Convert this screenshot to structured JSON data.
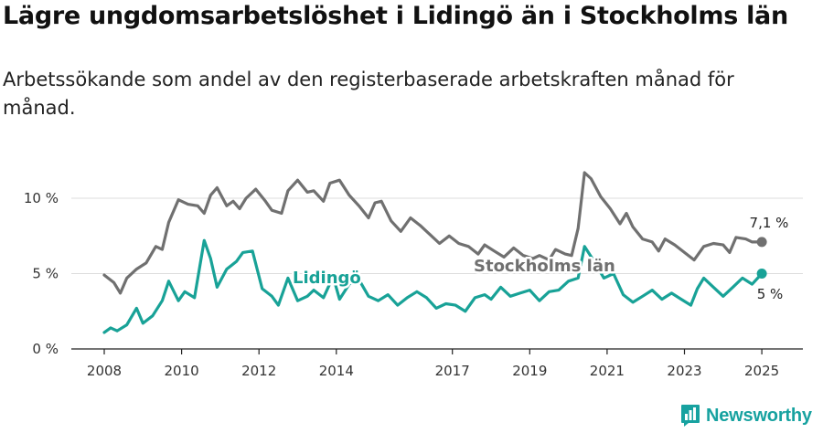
{
  "header": {
    "title": "Lägre ungdomsarbetslöshet i Lidingö än i Stockholms län",
    "subtitle": "Arbetssökande som andel av den registerbaserade arbetskraften månad för månad."
  },
  "brand": {
    "name": "Newsworthy",
    "icon": "bar-chart-logo-icon",
    "color": "#17a2a0"
  },
  "chart_data": {
    "type": "line",
    "title": "Lägre ungdomsarbetslöshet i Lidingö än i Stockholms län",
    "subtitle": "Arbetssökande som andel av den registerbaserade arbetskraften månad för månad.",
    "x_ticks": [
      "2008",
      "2010",
      "2012",
      "2014",
      "2017",
      "2019",
      "2021",
      "2023",
      "2025"
    ],
    "y_ticks": [
      "0 %",
      "5 %",
      "10 %"
    ],
    "ylim": [
      0,
      12
    ],
    "grid": true,
    "series": [
      {
        "name": "Stockholms län",
        "color": "#707070",
        "end_label": "7,1 %",
        "points": [
          [
            "2008-01",
            4.9
          ],
          [
            "2008-04",
            4.4
          ],
          [
            "2008-06",
            3.7
          ],
          [
            "2008-08",
            4.7
          ],
          [
            "2008-11",
            5.3
          ],
          [
            "2009-02",
            5.7
          ],
          [
            "2009-05",
            6.8
          ],
          [
            "2009-07",
            6.6
          ],
          [
            "2009-09",
            8.4
          ],
          [
            "2009-12",
            9.9
          ],
          [
            "2010-03",
            9.6
          ],
          [
            "2010-06",
            9.5
          ],
          [
            "2010-08",
            9.0
          ],
          [
            "2010-10",
            10.2
          ],
          [
            "2010-12",
            10.7
          ],
          [
            "2011-03",
            9.5
          ],
          [
            "2011-05",
            9.8
          ],
          [
            "2011-07",
            9.3
          ],
          [
            "2011-09",
            10.0
          ],
          [
            "2011-12",
            10.6
          ],
          [
            "2012-03",
            9.8
          ],
          [
            "2012-05",
            9.2
          ],
          [
            "2012-08",
            9.0
          ],
          [
            "2012-10",
            10.5
          ],
          [
            "2013-01",
            11.2
          ],
          [
            "2013-04",
            10.4
          ],
          [
            "2013-06",
            10.5
          ],
          [
            "2013-09",
            9.8
          ],
          [
            "2013-11",
            11.0
          ],
          [
            "2014-02",
            11.2
          ],
          [
            "2014-05",
            10.2
          ],
          [
            "2014-08",
            9.5
          ],
          [
            "2014-11",
            8.7
          ],
          [
            "2015-01",
            9.7
          ],
          [
            "2015-03",
            9.8
          ],
          [
            "2015-06",
            8.5
          ],
          [
            "2015-09",
            7.8
          ],
          [
            "2015-12",
            8.7
          ],
          [
            "2016-03",
            8.2
          ],
          [
            "2016-06",
            7.6
          ],
          [
            "2016-09",
            7.0
          ],
          [
            "2016-12",
            7.5
          ],
          [
            "2017-03",
            7.0
          ],
          [
            "2017-06",
            6.8
          ],
          [
            "2017-09",
            6.3
          ],
          [
            "2017-11",
            6.9
          ],
          [
            "2018-02",
            6.5
          ],
          [
            "2018-05",
            6.1
          ],
          [
            "2018-08",
            6.7
          ],
          [
            "2018-11",
            6.2
          ],
          [
            "2019-02",
            6.0
          ],
          [
            "2019-04",
            6.2
          ],
          [
            "2019-07",
            5.9
          ],
          [
            "2019-09",
            6.6
          ],
          [
            "2019-12",
            6.3
          ],
          [
            "2020-02",
            6.2
          ],
          [
            "2020-04",
            8.0
          ],
          [
            "2020-06",
            11.7
          ],
          [
            "2020-08",
            11.3
          ],
          [
            "2020-11",
            10.1
          ],
          [
            "2021-02",
            9.3
          ],
          [
            "2021-05",
            8.3
          ],
          [
            "2021-07",
            9.0
          ],
          [
            "2021-09",
            8.1
          ],
          [
            "2021-12",
            7.3
          ],
          [
            "2022-03",
            7.1
          ],
          [
            "2022-05",
            6.5
          ],
          [
            "2022-07",
            7.3
          ],
          [
            "2022-10",
            6.9
          ],
          [
            "2023-01",
            6.4
          ],
          [
            "2023-04",
            5.9
          ],
          [
            "2023-07",
            6.8
          ],
          [
            "2023-10",
            7.0
          ],
          [
            "2024-01",
            6.9
          ],
          [
            "2024-03",
            6.4
          ],
          [
            "2024-05",
            7.4
          ],
          [
            "2024-08",
            7.3
          ],
          [
            "2024-10",
            7.1
          ],
          [
            "2025-01",
            7.1
          ]
        ]
      },
      {
        "name": "Lidingö",
        "color": "#18a297",
        "end_label": "5 %",
        "points": [
          [
            "2008-01",
            1.1
          ],
          [
            "2008-03",
            1.4
          ],
          [
            "2008-05",
            1.2
          ],
          [
            "2008-08",
            1.6
          ],
          [
            "2008-11",
            2.7
          ],
          [
            "2009-01",
            1.7
          ],
          [
            "2009-04",
            2.2
          ],
          [
            "2009-07",
            3.2
          ],
          [
            "2009-09",
            4.5
          ],
          [
            "2009-12",
            3.2
          ],
          [
            "2010-02",
            3.8
          ],
          [
            "2010-05",
            3.4
          ],
          [
            "2010-08",
            7.2
          ],
          [
            "2010-10",
            6.0
          ],
          [
            "2010-12",
            4.1
          ],
          [
            "2011-03",
            5.3
          ],
          [
            "2011-06",
            5.8
          ],
          [
            "2011-08",
            6.4
          ],
          [
            "2011-11",
            6.5
          ],
          [
            "2012-02",
            4.0
          ],
          [
            "2012-05",
            3.5
          ],
          [
            "2012-07",
            2.9
          ],
          [
            "2012-10",
            4.7
          ],
          [
            "2013-01",
            3.2
          ],
          [
            "2013-04",
            3.5
          ],
          [
            "2013-06",
            3.9
          ],
          [
            "2013-09",
            3.4
          ],
          [
            "2013-12",
            4.8
          ],
          [
            "2014-02",
            3.3
          ],
          [
            "2014-05",
            4.3
          ],
          [
            "2014-08",
            4.6
          ],
          [
            "2014-11",
            3.5
          ],
          [
            "2015-02",
            3.2
          ],
          [
            "2015-05",
            3.6
          ],
          [
            "2015-08",
            2.9
          ],
          [
            "2015-11",
            3.4
          ],
          [
            "2016-02",
            3.8
          ],
          [
            "2016-05",
            3.4
          ],
          [
            "2016-08",
            2.7
          ],
          [
            "2016-11",
            3.0
          ],
          [
            "2017-02",
            2.9
          ],
          [
            "2017-05",
            2.5
          ],
          [
            "2017-08",
            3.4
          ],
          [
            "2017-11",
            3.6
          ],
          [
            "2018-01",
            3.3
          ],
          [
            "2018-04",
            4.1
          ],
          [
            "2018-07",
            3.5
          ],
          [
            "2018-10",
            3.7
          ],
          [
            "2019-01",
            3.9
          ],
          [
            "2019-04",
            3.2
          ],
          [
            "2019-07",
            3.8
          ],
          [
            "2019-10",
            3.9
          ],
          [
            "2020-01",
            4.5
          ],
          [
            "2020-04",
            4.7
          ],
          [
            "2020-06",
            6.8
          ],
          [
            "2020-09",
            5.8
          ],
          [
            "2020-12",
            4.7
          ],
          [
            "2021-03",
            5.0
          ],
          [
            "2021-06",
            3.6
          ],
          [
            "2021-09",
            3.1
          ],
          [
            "2021-12",
            3.5
          ],
          [
            "2022-03",
            3.9
          ],
          [
            "2022-06",
            3.3
          ],
          [
            "2022-09",
            3.7
          ],
          [
            "2022-12",
            3.3
          ],
          [
            "2023-03",
            2.9
          ],
          [
            "2023-05",
            4.0
          ],
          [
            "2023-07",
            4.7
          ],
          [
            "2023-10",
            4.1
          ],
          [
            "2024-01",
            3.5
          ],
          [
            "2024-04",
            4.1
          ],
          [
            "2024-07",
            4.7
          ],
          [
            "2024-10",
            4.3
          ],
          [
            "2025-01",
            5.0
          ]
        ]
      }
    ]
  }
}
